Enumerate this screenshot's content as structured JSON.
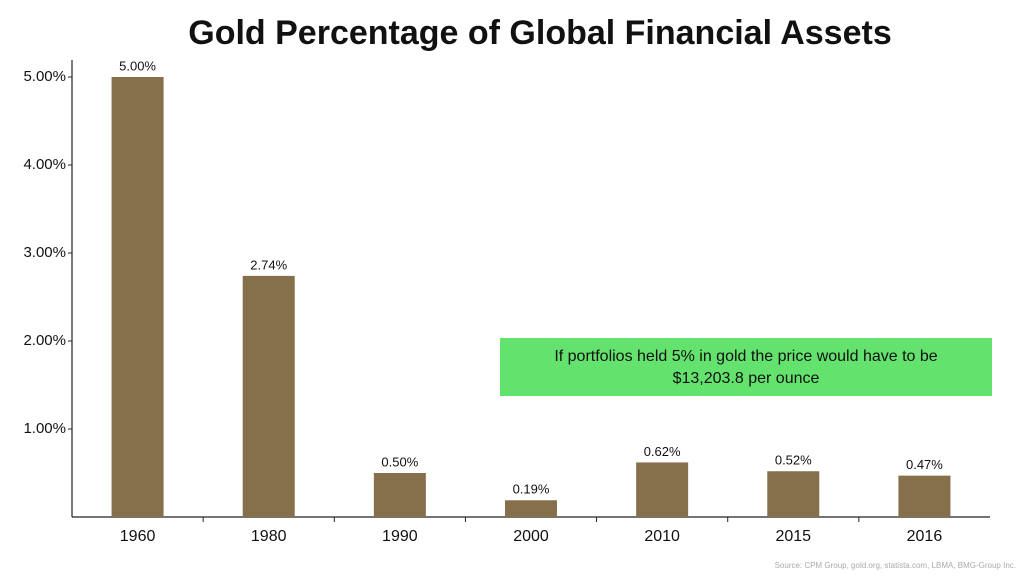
{
  "chart_data": {
    "type": "bar",
    "title": "Gold Percentage of Global Financial Assets",
    "categories": [
      "1960",
      "1980",
      "1990",
      "2000",
      "2010",
      "2015",
      "2016"
    ],
    "values": [
      5.0,
      2.74,
      0.5,
      0.19,
      0.62,
      0.52,
      0.47
    ],
    "value_labels": [
      "5.00%",
      "2.74%",
      "0.50%",
      "0.19%",
      "0.62%",
      "0.52%",
      "0.47%"
    ],
    "color": "#85704b",
    "ylim": [
      0,
      5.2
    ],
    "yticks": [
      {
        "value": 1,
        "label": "1.00%"
      },
      {
        "value": 2,
        "label": "2.00%"
      },
      {
        "value": 3,
        "label": "3.00%"
      },
      {
        "value": 4,
        "label": "4.00%"
      },
      {
        "value": 5,
        "label": "5.00%"
      }
    ],
    "grid": false,
    "annotation_lines": [
      "If portfolios held 5% in gold the price would have to be",
      "$13,203.8 per ounce"
    ],
    "annotation_color": "#63e36d",
    "source": "Source: CPM Group, gold.org, statista.com, LBMA, BMG-Group Inc."
  }
}
